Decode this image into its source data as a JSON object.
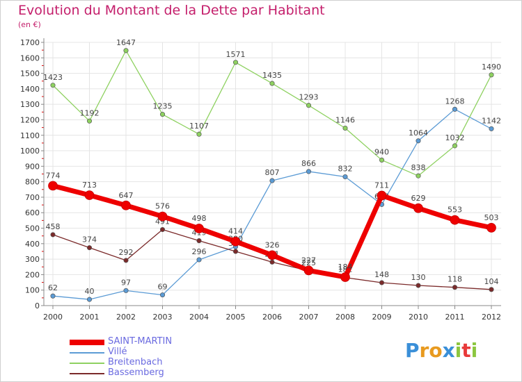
{
  "header": {
    "title": "Evolution du Montant de la Dette par Habitant",
    "unit": "(en €)"
  },
  "logo": {
    "letters": [
      "P",
      "r",
      "o",
      "x",
      "i",
      "t",
      "i"
    ],
    "colors": [
      "#3a8fd8",
      "#e89a1f",
      "#e89a1f",
      "#3a8fd8",
      "#8cc63f",
      "#e83a3a",
      "#8cc63f"
    ]
  },
  "chart_data": {
    "type": "line",
    "title": "Evolution du Montant de la Dette par Habitant",
    "ylabel": "(en €)",
    "x": [
      "2000",
      "2001",
      "2002",
      "2003",
      "2004",
      "2005",
      "2006",
      "2007",
      "2008",
      "2009",
      "2010",
      "2011",
      "2012"
    ],
    "ylim": [
      0,
      1700
    ],
    "yticks": [
      0,
      100,
      200,
      300,
      400,
      500,
      600,
      700,
      800,
      900,
      1000,
      1100,
      1200,
      1300,
      1400,
      1500,
      1600,
      1700
    ],
    "grid": true,
    "legend_position": "bottom-left",
    "series": [
      {
        "name": "SAINT-MARTIN",
        "color": "#ee0000",
        "width": "thick",
        "values": [
          774,
          713,
          647,
          576,
          498,
          414,
          326,
          227,
          184,
          711,
          629,
          553,
          503
        ]
      },
      {
        "name": "Villé",
        "color": "#5b9bd5",
        "width": "thin",
        "values": [
          62,
          40,
          97,
          69,
          296,
          380,
          807,
          866,
          832,
          653,
          1064,
          1268,
          1142
        ]
      },
      {
        "name": "Breitenbach",
        "color": "#8ed160",
        "width": "thin",
        "values": [
          1423,
          1192,
          1647,
          1235,
          1107,
          1571,
          1435,
          1293,
          1146,
          940,
          838,
          1032,
          1490
        ]
      },
      {
        "name": "Bassemberg",
        "color": "#7b2a2a",
        "width": "thin",
        "values": [
          458,
          374,
          292,
          491,
          419,
          350,
          281,
          225,
          181,
          148,
          130,
          118,
          104
        ]
      }
    ]
  }
}
